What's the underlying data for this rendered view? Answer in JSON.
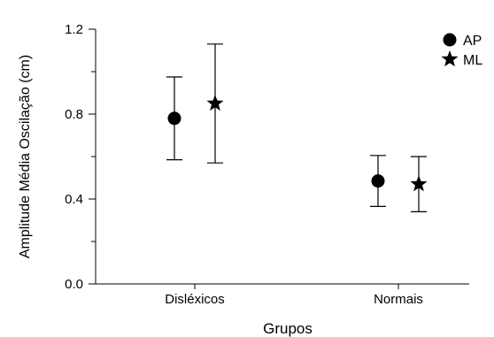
{
  "chart_data": {
    "type": "scatter",
    "title": "",
    "xlabel": "Grupos",
    "ylabel": "Amplitude Média Oscilação (cm)",
    "categories": [
      "Disléxicos",
      "Normais"
    ],
    "ylim": [
      0.0,
      1.2
    ],
    "yticks": [
      0.0,
      0.4,
      0.8,
      1.2
    ],
    "ytick_labels": [
      "0.0",
      "0.4",
      "0.8",
      "1.2"
    ],
    "grid": false,
    "legend_position": "top-right",
    "series": [
      {
        "name": "AP",
        "marker": "circle",
        "values": [
          0.78,
          0.485
        ],
        "error_low": [
          0.585,
          0.365
        ],
        "error_high": [
          0.975,
          0.605
        ]
      },
      {
        "name": "ML",
        "marker": "star",
        "values": [
          0.85,
          0.47
        ],
        "error_low": [
          0.57,
          0.34
        ],
        "error_high": [
          1.13,
          0.6
        ]
      }
    ]
  }
}
